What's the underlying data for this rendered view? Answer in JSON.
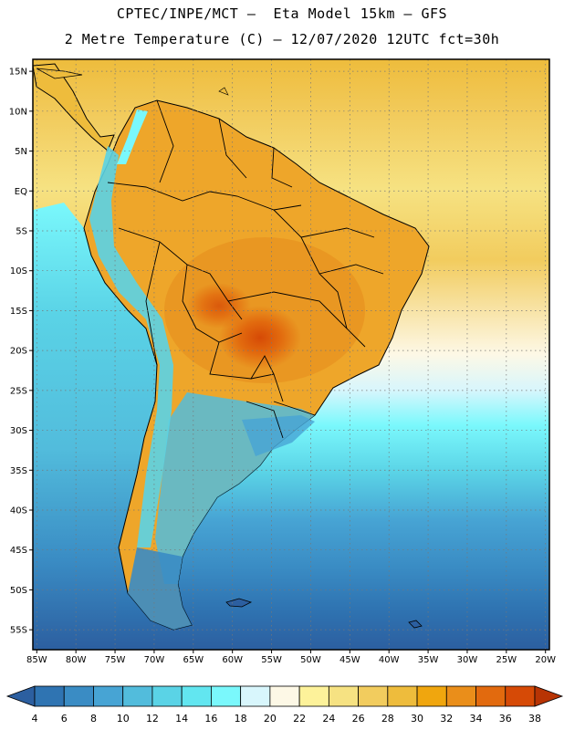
{
  "title_line1": "CPTEC/INPE/MCT –  Eta Model 15km – GFS",
  "title_line2": "2 Metre Temperature (C) – 12/07/2020 12UTC fct=30h",
  "map": {
    "lat_labels": [
      "15N",
      "10N",
      "5N",
      "EQ",
      "5S",
      "10S",
      "15S",
      "20S",
      "25S",
      "30S",
      "35S",
      "40S",
      "45S",
      "50S",
      "55S"
    ],
    "lat_values": [
      15,
      10,
      5,
      0,
      -5,
      -10,
      -15,
      -20,
      -25,
      -30,
      -35,
      -40,
      -45,
      -50,
      -55
    ],
    "lon_labels": [
      "85W",
      "80W",
      "75W",
      "70W",
      "65W",
      "60W",
      "55W",
      "50W",
      "45W",
      "40W",
      "35W",
      "30W",
      "25W",
      "20W"
    ],
    "lon_values": [
      -85,
      -80,
      -75,
      -70,
      -65,
      -60,
      -55,
      -50,
      -45,
      -40,
      -35,
      -30,
      -25,
      -20
    ],
    "extent": {
      "lon_min": -85.5,
      "lon_max": -19.5,
      "lat_min": -57.5,
      "lat_max": 16.5
    }
  },
  "colorbar": {
    "labels": [
      "4",
      "6",
      "8",
      "10",
      "12",
      "14",
      "16",
      "18",
      "20",
      "22",
      "24",
      "26",
      "28",
      "30",
      "32",
      "34",
      "36",
      "38"
    ],
    "colors": [
      "#2c5fa0",
      "#2f74b2",
      "#3a8cc4",
      "#47a4d4",
      "#52bcdc",
      "#5ad3e6",
      "#62e6f0",
      "#7af8fc",
      "#d8f6fc",
      "#fdf8e6",
      "#fdf29a",
      "#f6e282",
      "#f2cc5e",
      "#eebc3c",
      "#f0a60e",
      "#ea8e1a",
      "#e26a0e",
      "#d64a06",
      "#b83404"
    ]
  },
  "palette": {
    "land": "#eea62a",
    "land_hot": "#e07a1c",
    "land_cold": "#5ad3e6",
    "ocean_warm": "#f0cc5a"
  }
}
